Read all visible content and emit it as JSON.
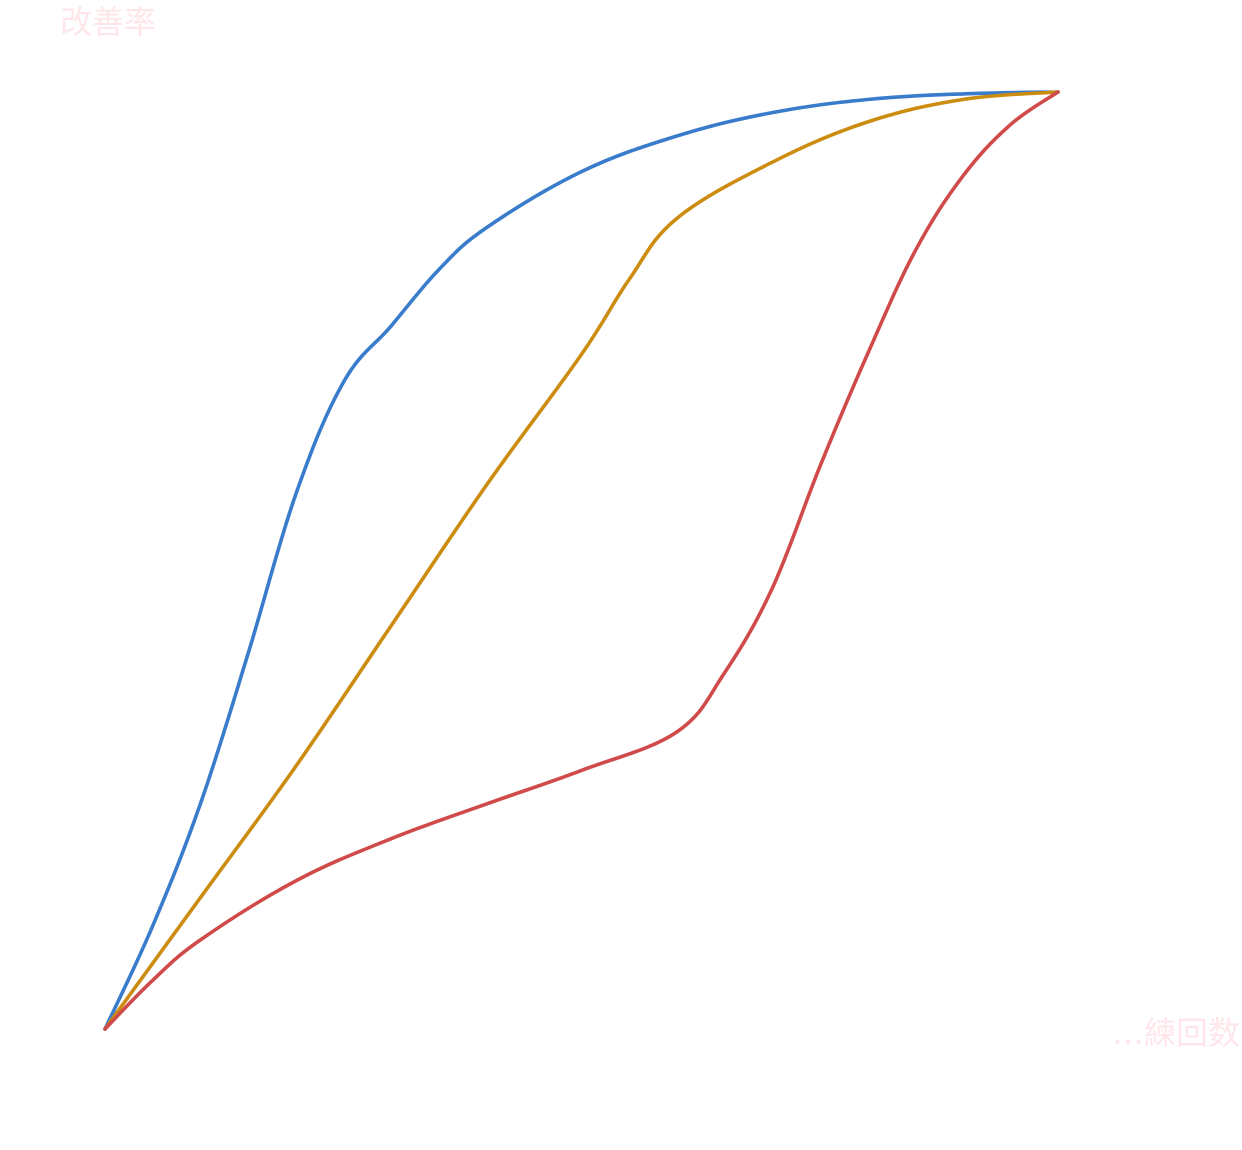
{
  "chart_data": {
    "type": "line",
    "ylabel": "改善率",
    "xlabel": "…練回数",
    "xlim": [
      0,
      100
    ],
    "ylim": [
      0,
      100
    ],
    "grid": false,
    "legend": "none",
    "series": [
      {
        "color": "#3a7ccc",
        "points": [
          [
            0,
            0
          ],
          [
            5,
            11
          ],
          [
            10,
            24
          ],
          [
            15,
            40
          ],
          [
            20,
            57
          ],
          [
            25,
            69
          ],
          [
            30,
            75
          ],
          [
            35,
            81
          ],
          [
            40,
            85.5
          ],
          [
            50,
            91.5
          ],
          [
            60,
            95.3
          ],
          [
            70,
            97.8
          ],
          [
            80,
            99.2
          ],
          [
            90,
            99.8
          ],
          [
            100,
            100
          ]
        ]
      },
      {
        "color": "#cc8c10",
        "points": [
          [
            0,
            0
          ],
          [
            10,
            14
          ],
          [
            20,
            28
          ],
          [
            30,
            43
          ],
          [
            40,
            58
          ],
          [
            50,
            72
          ],
          [
            55,
            80
          ],
          [
            60,
            86.5
          ],
          [
            70,
            92.5
          ],
          [
            80,
            96.8
          ],
          [
            90,
            99.2
          ],
          [
            100,
            100
          ]
        ]
      },
      {
        "color": "#d04a4a",
        "points": [
          [
            0,
            0
          ],
          [
            5,
            5.2
          ],
          [
            10,
            9.5
          ],
          [
            20,
            15.8
          ],
          [
            30,
            20.3
          ],
          [
            40,
            24
          ],
          [
            50,
            27.6
          ],
          [
            60,
            31.7
          ],
          [
            65,
            38
          ],
          [
            70,
            47
          ],
          [
            75,
            60
          ],
          [
            80,
            72
          ],
          [
            85,
            83
          ],
          [
            90,
            91
          ],
          [
            95,
            96.5
          ],
          [
            100,
            100
          ]
        ]
      }
    ]
  }
}
